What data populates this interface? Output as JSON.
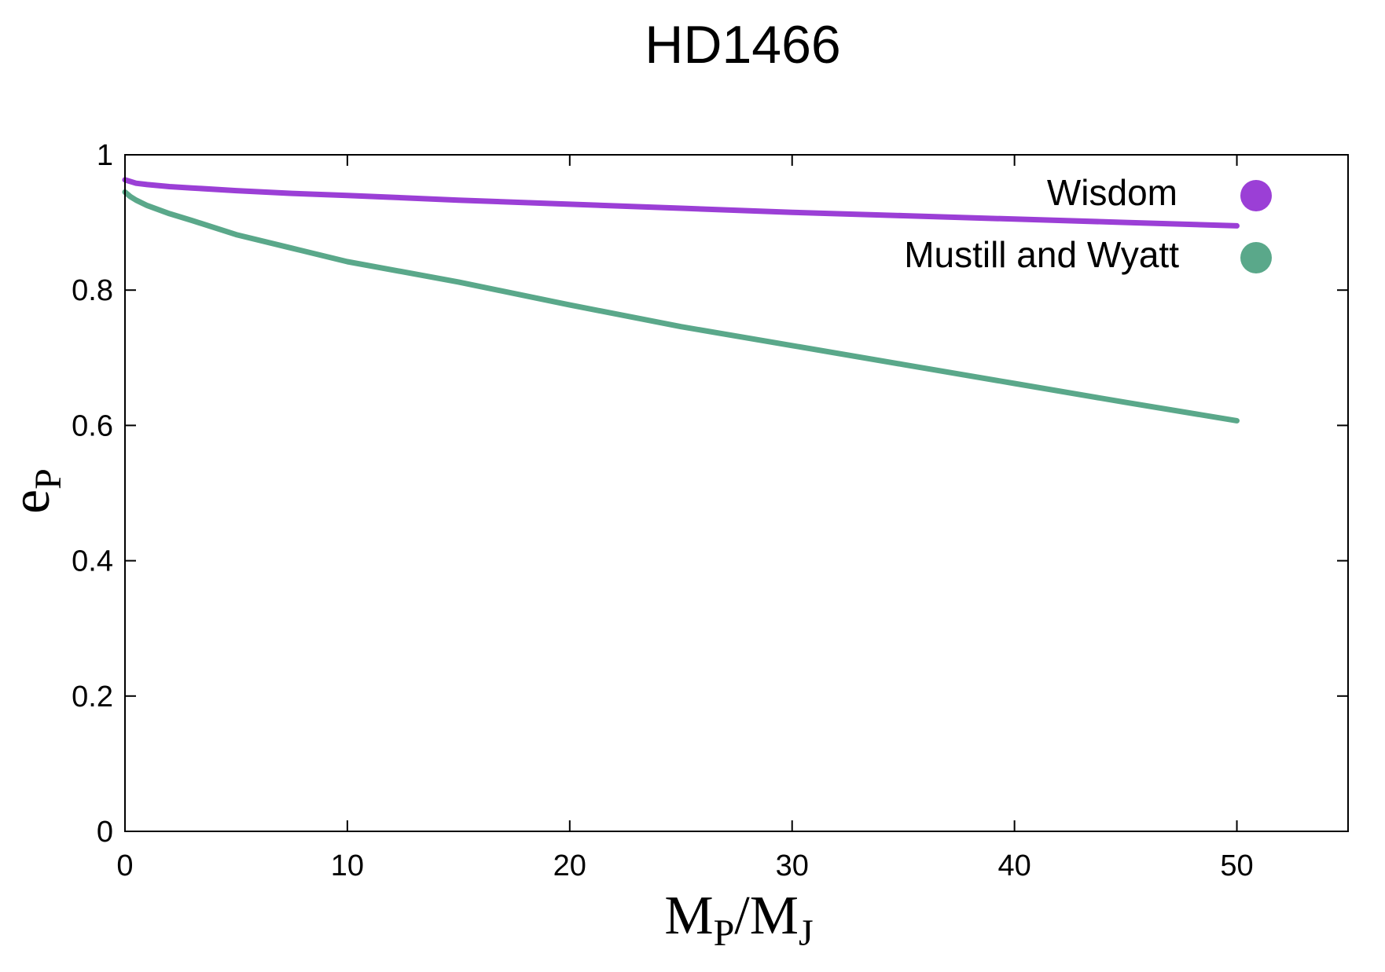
{
  "chart_data": {
    "type": "line",
    "title": "HD1466",
    "xlabel": {
      "main": "M",
      "sub1": "P",
      "slash": "/M",
      "sub2": "J"
    },
    "ylabel": {
      "main": "e",
      "sub": "P"
    },
    "xlim": [
      0,
      55
    ],
    "ylim": [
      0,
      1
    ],
    "xticks": [
      0,
      10,
      20,
      30,
      40,
      50
    ],
    "yticks": [
      0,
      0.2,
      0.4,
      0.6,
      0.8,
      1
    ],
    "xtick_labels": [
      "0",
      "10",
      "20",
      "30",
      "40",
      "50"
    ],
    "ytick_labels": [
      "0",
      "0.2",
      "0.4",
      "0.6",
      "0.8",
      "1"
    ],
    "grid": false,
    "legend_position": "top-right",
    "series": [
      {
        "name": "Wisdom",
        "color": "#9b3fd6",
        "x": [
          0,
          0.5,
          1,
          2,
          3,
          5,
          7.5,
          10,
          15,
          20,
          25,
          30,
          35,
          40,
          45,
          50
        ],
        "y": [
          0.963,
          0.958,
          0.956,
          0.953,
          0.951,
          0.947,
          0.943,
          0.94,
          0.933,
          0.927,
          0.921,
          0.915,
          0.91,
          0.905,
          0.9,
          0.895
        ]
      },
      {
        "name": "Mustill and Wyatt",
        "color": "#5aa88a",
        "x": [
          0,
          0.25,
          0.5,
          1,
          2,
          3,
          5,
          7.5,
          10,
          15,
          20,
          25,
          30,
          35,
          40,
          45,
          50
        ],
        "y": [
          0.945,
          0.938,
          0.933,
          0.925,
          0.913,
          0.903,
          0.882,
          0.862,
          0.842,
          0.812,
          0.778,
          0.746,
          0.718,
          0.69,
          0.662,
          0.634,
          0.607
        ]
      }
    ]
  }
}
